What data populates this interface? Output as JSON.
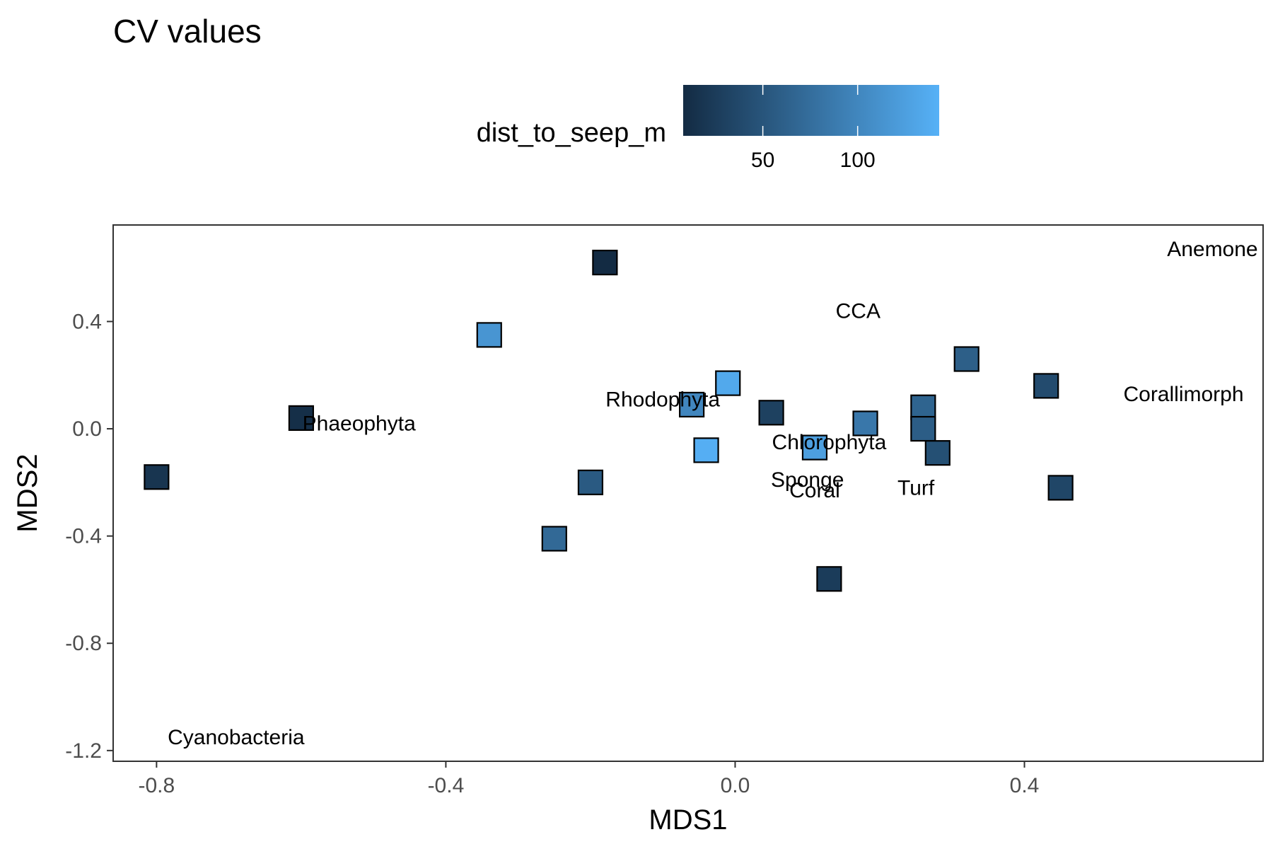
{
  "chart_data": {
    "type": "scatter",
    "title": "CV values",
    "xlabel": "MDS1",
    "ylabel": "MDS2",
    "xlim": [
      -0.86,
      0.73
    ],
    "ylim": [
      -1.24,
      0.76
    ],
    "x_ticks": [
      -0.8,
      -0.4,
      0.0,
      0.4
    ],
    "x_tick_labels": [
      "-0.8",
      "-0.4",
      "0.0",
      "0.4"
    ],
    "y_ticks": [
      -1.2,
      -0.8,
      -0.4,
      0.0,
      0.4
    ],
    "y_tick_labels": [
      "-1.2",
      "-0.8",
      "-0.4",
      "0.0",
      "0.4"
    ],
    "grid": false,
    "legend": {
      "title": "dist_to_seep_m",
      "position": "top",
      "type": "colorbar",
      "range": [
        8,
        143
      ],
      "ticks": [
        50,
        100
      ],
      "tick_labels": [
        "50",
        "100"
      ],
      "low_color": "#132b43",
      "high_color": "#56b1f7"
    },
    "points": [
      {
        "x": -0.18,
        "y": 0.62,
        "dist": 8
      },
      {
        "x": -0.34,
        "y": 0.35,
        "dist": 115
      },
      {
        "x": -0.6,
        "y": 0.04,
        "dist": 12
      },
      {
        "x": -0.8,
        "y": -0.18,
        "dist": 18
      },
      {
        "x": -0.2,
        "y": -0.2,
        "dist": 55
      },
      {
        "x": -0.25,
        "y": -0.41,
        "dist": 70
      },
      {
        "x": -0.06,
        "y": 0.09,
        "dist": 100
      },
      {
        "x": -0.01,
        "y": 0.17,
        "dist": 135
      },
      {
        "x": -0.04,
        "y": -0.08,
        "dist": 140
      },
      {
        "x": 0.05,
        "y": 0.06,
        "dist": 30
      },
      {
        "x": 0.11,
        "y": -0.07,
        "dist": 125
      },
      {
        "x": 0.18,
        "y": 0.02,
        "dist": 85
      },
      {
        "x": 0.13,
        "y": -0.56,
        "dist": 25
      },
      {
        "x": 0.26,
        "y": 0.08,
        "dist": 65
      },
      {
        "x": 0.26,
        "y": 0.0,
        "dist": 58
      },
      {
        "x": 0.28,
        "y": -0.09,
        "dist": 45
      },
      {
        "x": 0.32,
        "y": 0.26,
        "dist": 60
      },
      {
        "x": 0.43,
        "y": 0.16,
        "dist": 40
      },
      {
        "x": 0.45,
        "y": -0.22,
        "dist": 35
      }
    ],
    "labels": [
      {
        "text": "Anemone",
        "x": 0.66,
        "y": 0.67
      },
      {
        "text": "CCA",
        "x": 0.17,
        "y": 0.44
      },
      {
        "text": "Corallimorph",
        "x": 0.62,
        "y": 0.13
      },
      {
        "text": "Rhodophyta",
        "x": -0.1,
        "y": 0.11
      },
      {
        "text": "Phaeophyta",
        "x": -0.52,
        "y": 0.02
      },
      {
        "text": "Chlorophyta",
        "x": 0.13,
        "y": -0.05
      },
      {
        "text": "Sponge",
        "x": 0.1,
        "y": -0.19
      },
      {
        "text": "Coral",
        "x": 0.11,
        "y": -0.23
      },
      {
        "text": "Turf",
        "x": 0.25,
        "y": -0.22
      },
      {
        "text": "Cyanobacteria",
        "x": -0.69,
        "y": -1.15
      }
    ]
  }
}
